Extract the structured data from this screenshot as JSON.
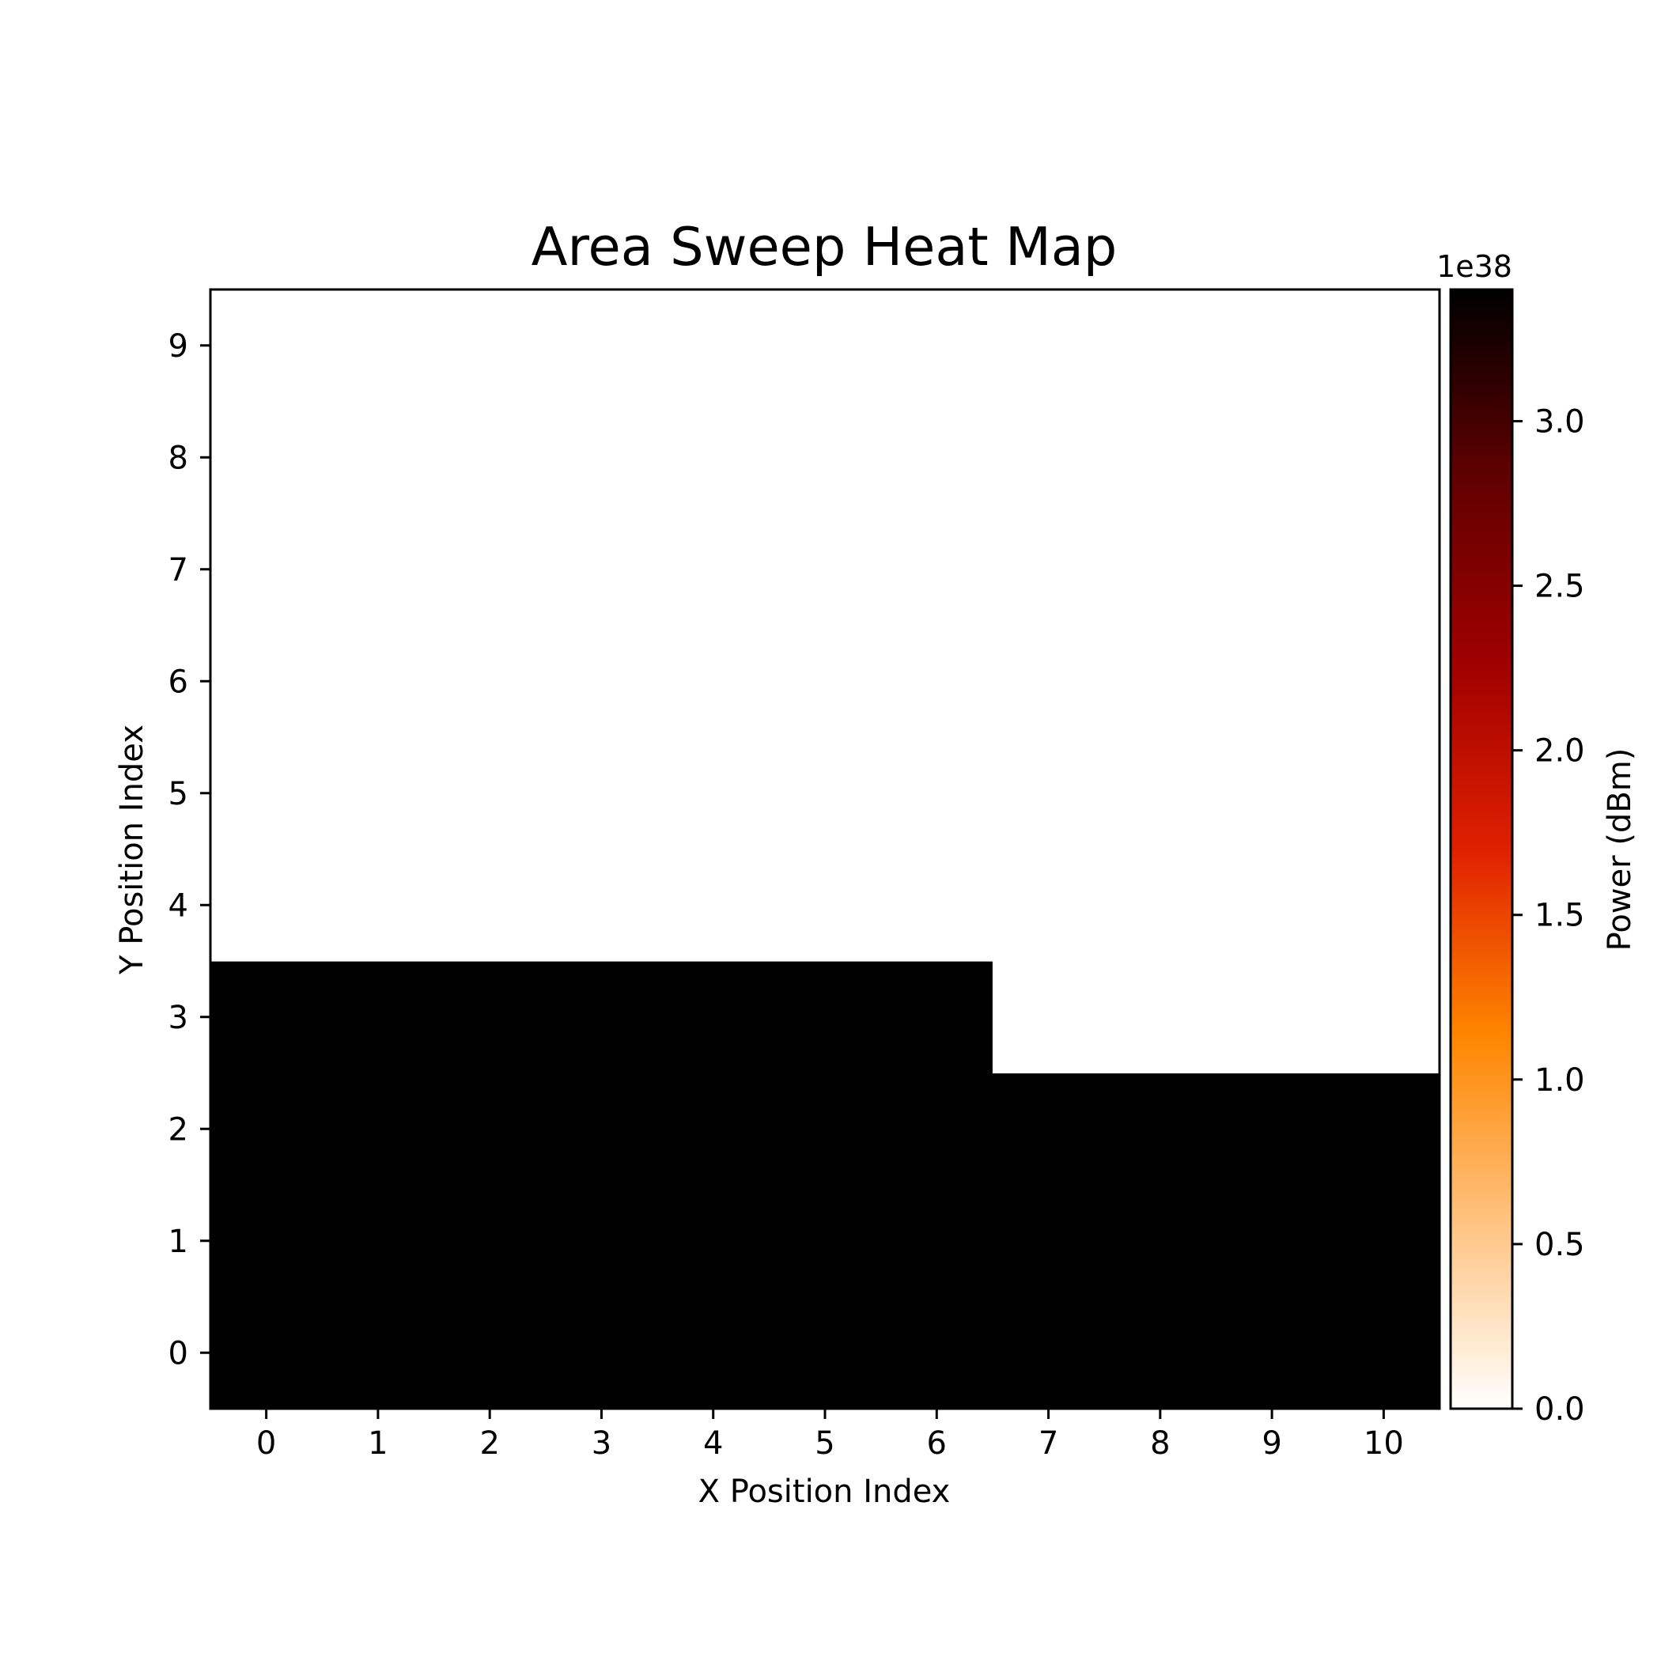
{
  "chart_data": {
    "type": "heatmap",
    "title": "Area Sweep Heat Map",
    "xlabel": "X Position Index",
    "ylabel": "Y Position Index",
    "x": [
      0,
      1,
      2,
      3,
      4,
      5,
      6,
      7,
      8,
      9,
      10
    ],
    "y": [
      0,
      1,
      2,
      3,
      4,
      5,
      6,
      7,
      8,
      9
    ],
    "xlim": [
      -0.5,
      10.5
    ],
    "ylim": [
      -0.5,
      9.5
    ],
    "x_ticks": [
      "0",
      "1",
      "2",
      "3",
      "4",
      "5",
      "6",
      "7",
      "8",
      "9",
      "10"
    ],
    "y_ticks": [
      "0",
      "1",
      "2",
      "3",
      "4",
      "5",
      "6",
      "7",
      "8",
      "9"
    ],
    "values": [
      [
        3.4e+38,
        3.4e+38,
        3.4e+38,
        3.4e+38,
        3.4e+38,
        3.4e+38,
        3.4e+38,
        3.4e+38,
        3.4e+38,
        3.4e+38,
        3.4e+38
      ],
      [
        3.4e+38,
        3.4e+38,
        3.4e+38,
        3.4e+38,
        3.4e+38,
        3.4e+38,
        3.4e+38,
        3.4e+38,
        3.4e+38,
        3.4e+38,
        3.4e+38
      ],
      [
        3.4e+38,
        3.4e+38,
        3.4e+38,
        3.4e+38,
        3.4e+38,
        3.4e+38,
        3.4e+38,
        3.4e+38,
        3.4e+38,
        3.4e+38,
        3.4e+38
      ],
      [
        3.4e+38,
        3.4e+38,
        3.4e+38,
        3.4e+38,
        3.4e+38,
        3.4e+38,
        3.4e+38,
        0,
        0,
        0,
        0
      ],
      [
        0,
        0,
        0,
        0,
        0,
        0,
        0,
        0,
        0,
        0,
        0
      ],
      [
        0,
        0,
        0,
        0,
        0,
        0,
        0,
        0,
        0,
        0,
        0
      ],
      [
        0,
        0,
        0,
        0,
        0,
        0,
        0,
        0,
        0,
        0,
        0
      ],
      [
        0,
        0,
        0,
        0,
        0,
        0,
        0,
        0,
        0,
        0,
        0
      ],
      [
        0,
        0,
        0,
        0,
        0,
        0,
        0,
        0,
        0,
        0,
        0
      ],
      [
        0,
        0,
        0,
        0,
        0,
        0,
        0,
        0,
        0,
        0,
        0
      ]
    ],
    "colorbar": {
      "label": "Power (dBm)",
      "multiplier": "1e38",
      "range": [
        0,
        3.4
      ],
      "ticks": [
        0.0,
        0.5,
        1.0,
        1.5,
        2.0,
        2.5,
        3.0
      ],
      "tick_labels": [
        "0.0",
        "0.5",
        "1.0",
        "1.5",
        "2.0",
        "2.5",
        "3.0"
      ],
      "colormap": "gist_heat_r",
      "colors": [
        "#ffffff",
        "#ffc380",
        "#ff8600",
        "#df2000",
        "#9f0000",
        "#600000",
        "#000000"
      ]
    },
    "grid": false
  }
}
